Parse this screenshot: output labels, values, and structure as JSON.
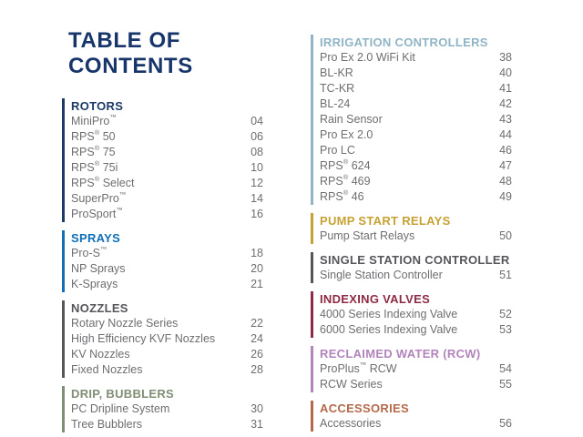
{
  "title": {
    "line1": "TABLE OF",
    "line2": "CONTENTS",
    "color": "#17356a"
  },
  "text_color": "#6d6e71",
  "columns": [
    {
      "sections": [
        {
          "heading": "ROTORS",
          "color": "#1c3a66",
          "items": [
            {
              "label": "MiniPro™",
              "page": "04"
            },
            {
              "label": "RPS® 50",
              "page": "06"
            },
            {
              "label": "RPS® 75",
              "page": "08"
            },
            {
              "label": "RPS® 75i",
              "page": "10"
            },
            {
              "label": "RPS® Select",
              "page": "12"
            },
            {
              "label": "SuperPro™",
              "page": "14"
            },
            {
              "label": "ProSport™",
              "page": "16"
            }
          ]
        },
        {
          "heading": "SPRAYS",
          "color": "#0f6fb7",
          "items": [
            {
              "label": "Pro-S™",
              "page": "18"
            },
            {
              "label": "NP Sprays",
              "page": "20"
            },
            {
              "label": "K-Sprays",
              "page": "21"
            }
          ]
        },
        {
          "heading": "NOZZLES",
          "color": "#55565a",
          "items": [
            {
              "label": "Rotary Nozzle Series",
              "page": "22"
            },
            {
              "label": "High Efficiency KVF Nozzles",
              "page": "24"
            },
            {
              "label": "KV Nozzles",
              "page": "26"
            },
            {
              "label": "Fixed Nozzles",
              "page": "28"
            }
          ]
        },
        {
          "heading": "DRIP, BUBBLERS",
          "color": "#7f8e74",
          "items": [
            {
              "label": "PC Dripline System",
              "page": "30"
            },
            {
              "label": "Tree Bubblers",
              "page": "31"
            }
          ]
        }
      ]
    },
    {
      "sections": [
        {
          "heading": "IRRIGATION CONTROLLERS",
          "color": "#8fb4c6",
          "items": [
            {
              "label": "Pro Ex 2.0 WiFi Kit",
              "page": "38"
            },
            {
              "label": "BL-KR",
              "page": "40"
            },
            {
              "label": "TC-KR",
              "page": "41"
            },
            {
              "label": "BL-24",
              "page": "42"
            },
            {
              "label": "Rain Sensor",
              "page": "43"
            },
            {
              "label": "Pro Ex 2.0",
              "page": "44"
            },
            {
              "label": "Pro LC",
              "page": "46"
            },
            {
              "label": "RPS® 624",
              "page": "47"
            },
            {
              "label": "RPS® 469",
              "page": "48"
            },
            {
              "label": "RPS® 46",
              "page": "49"
            }
          ]
        },
        {
          "heading": "PUMP START RELAYS",
          "color": "#c6a233",
          "items": [
            {
              "label": "Pump Start Relays",
              "page": "50"
            }
          ]
        },
        {
          "heading": "SINGLE STATION CONTROLLER",
          "color": "#55565a",
          "items": [
            {
              "label": "Single Station Controller",
              "page": "51"
            }
          ]
        },
        {
          "heading": "INDEXING VALVES",
          "color": "#8e2a45",
          "items": [
            {
              "label": "4000 Series Indexing Valve",
              "page": "52"
            },
            {
              "label": "6000 Series Indexing Valve",
              "page": "53"
            }
          ]
        },
        {
          "heading": "RECLAIMED WATER (RCW)",
          "color": "#b184bb",
          "items": [
            {
              "label": "ProPlus™ RCW",
              "page": "54"
            },
            {
              "label": "RCW Series",
              "page": "55"
            }
          ]
        },
        {
          "heading": "ACCESSORIES",
          "color": "#b5694a",
          "items": [
            {
              "label": "Accessories",
              "page": "56"
            }
          ]
        }
      ]
    }
  ]
}
